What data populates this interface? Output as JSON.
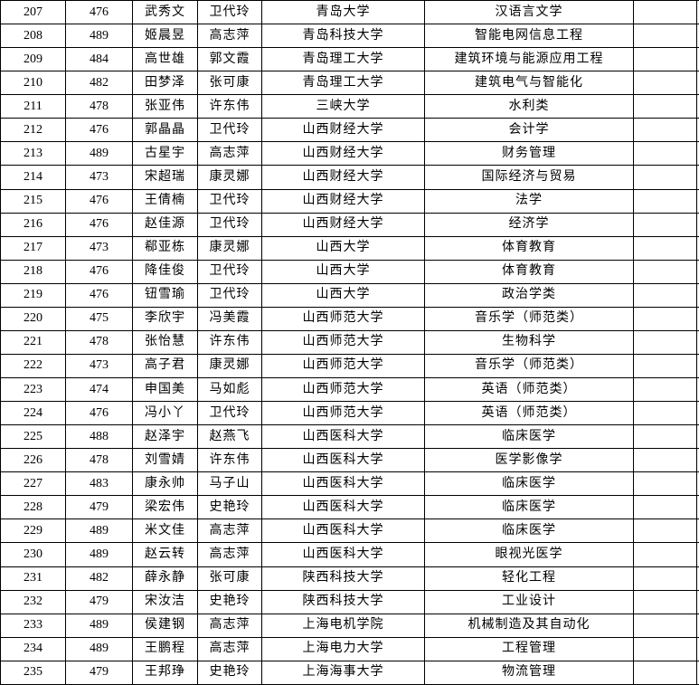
{
  "colors": {
    "border": "#000000",
    "background": "#ffffff",
    "text": "#000000"
  },
  "table": {
    "rows": [
      [
        "207",
        "476",
        "武秀文",
        "卫代玲",
        "青岛大学",
        "汉语言文学",
        ""
      ],
      [
        "208",
        "489",
        "姬晨昱",
        "高志萍",
        "青岛科技大学",
        "智能电网信息工程",
        ""
      ],
      [
        "209",
        "484",
        "高世雄",
        "郭文霞",
        "青岛理工大学",
        "建筑环境与能源应用工程",
        ""
      ],
      [
        "210",
        "482",
        "田梦泽",
        "张可康",
        "青岛理工大学",
        "建筑电气与智能化",
        ""
      ],
      [
        "211",
        "478",
        "张亚伟",
        "许东伟",
        "三峡大学",
        "水利类",
        ""
      ],
      [
        "212",
        "476",
        "郭晶晶",
        "卫代玲",
        "山西财经大学",
        "会计学",
        ""
      ],
      [
        "213",
        "489",
        "古星宇",
        "高志萍",
        "山西财经大学",
        "财务管理",
        ""
      ],
      [
        "214",
        "473",
        "宋超瑞",
        "康灵娜",
        "山西财经大学",
        "国际经济与贸易",
        ""
      ],
      [
        "215",
        "476",
        "王倩楠",
        "卫代玲",
        "山西财经大学",
        "法学",
        ""
      ],
      [
        "216",
        "476",
        "赵佳源",
        "卫代玲",
        "山西财经大学",
        "经济学",
        ""
      ],
      [
        "217",
        "473",
        "郗亚栋",
        "康灵娜",
        "山西大学",
        "体育教育",
        ""
      ],
      [
        "218",
        "476",
        "降佳俊",
        "卫代玲",
        "山西大学",
        "体育教育",
        ""
      ],
      [
        "219",
        "476",
        "钮雪瑜",
        "卫代玲",
        "山西大学",
        "政治学类",
        ""
      ],
      [
        "220",
        "475",
        "李欣宇",
        "冯美霞",
        "山西师范大学",
        "音乐学（师范类）",
        ""
      ],
      [
        "221",
        "478",
        "张怡慧",
        "许东伟",
        "山西师范大学",
        "生物科学",
        ""
      ],
      [
        "222",
        "473",
        "高子君",
        "康灵娜",
        "山西师范大学",
        "音乐学（师范类）",
        ""
      ],
      [
        "223",
        "474",
        "申国美",
        "马如彪",
        "山西师范大学",
        "英语（师范类）",
        ""
      ],
      [
        "224",
        "476",
        "冯小丫",
        "卫代玲",
        "山西师范大学",
        "英语（师范类）",
        ""
      ],
      [
        "225",
        "488",
        "赵泽宇",
        "赵燕飞",
        "山西医科大学",
        "临床医学",
        ""
      ],
      [
        "226",
        "478",
        "刘雪婧",
        "许东伟",
        "山西医科大学",
        "医学影像学",
        ""
      ],
      [
        "227",
        "483",
        "康永帅",
        "马子山",
        "山西医科大学",
        "临床医学",
        ""
      ],
      [
        "228",
        "479",
        "梁宏伟",
        "史艳玲",
        "山西医科大学",
        "临床医学",
        ""
      ],
      [
        "229",
        "489",
        "米文佳",
        "高志萍",
        "山西医科大学",
        "临床医学",
        ""
      ],
      [
        "230",
        "489",
        "赵云转",
        "高志萍",
        "山西医科大学",
        "眼视光医学",
        ""
      ],
      [
        "231",
        "482",
        "薛永静",
        "张可康",
        "陕西科技大学",
        "轻化工程",
        ""
      ],
      [
        "232",
        "479",
        "宋汝洁",
        "史艳玲",
        "陕西科技大学",
        "工业设计",
        ""
      ],
      [
        "233",
        "489",
        "侯建钢",
        "高志萍",
        "上海电机学院",
        "机械制造及其自动化",
        ""
      ],
      [
        "234",
        "489",
        "王鹏程",
        "高志萍",
        "上海电力大学",
        "工程管理",
        ""
      ],
      [
        "235",
        "479",
        "王邦琤",
        "史艳玲",
        "上海海事大学",
        "物流管理",
        ""
      ]
    ]
  }
}
